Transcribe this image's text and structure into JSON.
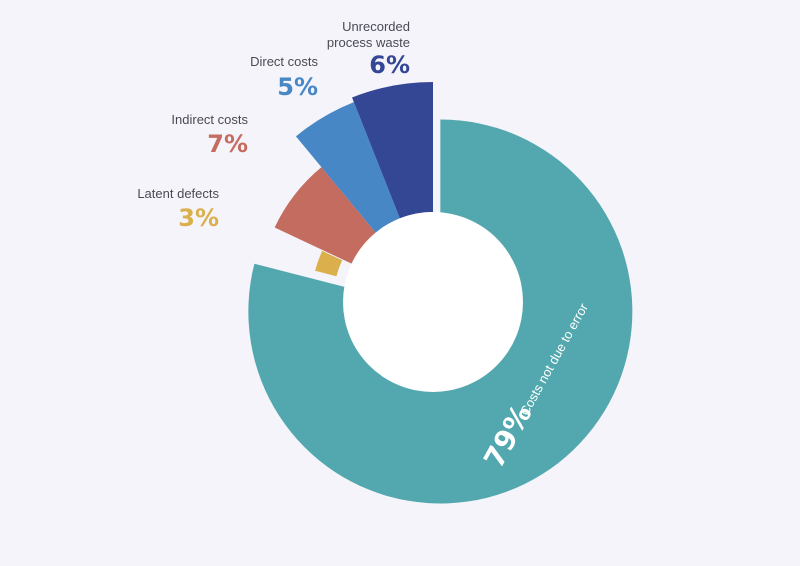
{
  "chart_data": {
    "type": "pie",
    "title": "",
    "series": [
      {
        "name": "Costs not due to error",
        "pct_label": "79%",
        "value": 79,
        "color": "#52a8ae"
      },
      {
        "name": "Latent defects",
        "pct_label": "3%",
        "value": 3,
        "color": "#dbb04c"
      },
      {
        "name": "Indirect costs",
        "pct_label": "7%",
        "value": 7,
        "color": "#c56c60"
      },
      {
        "name": "Direct costs",
        "pct_label": "5%",
        "value": 5,
        "color": "#4887c6"
      },
      {
        "name": "Unrecorded process waste",
        "pct_label": "6%",
        "value": 6,
        "color": "#344795"
      }
    ]
  },
  "labels": {
    "unrecorded_line1": "Unrecorded",
    "unrecorded_line2": "process waste",
    "direct": "Direct costs",
    "indirect": "Indirect costs",
    "latent": "Latent defects",
    "main": "Costs not due to error"
  },
  "colors": {
    "background": "#f4f4fa",
    "teal": "#52a8ae",
    "yellow": "#dbb04c",
    "red": "#c56c60",
    "blue": "#4887c6",
    "navy": "#344795"
  }
}
